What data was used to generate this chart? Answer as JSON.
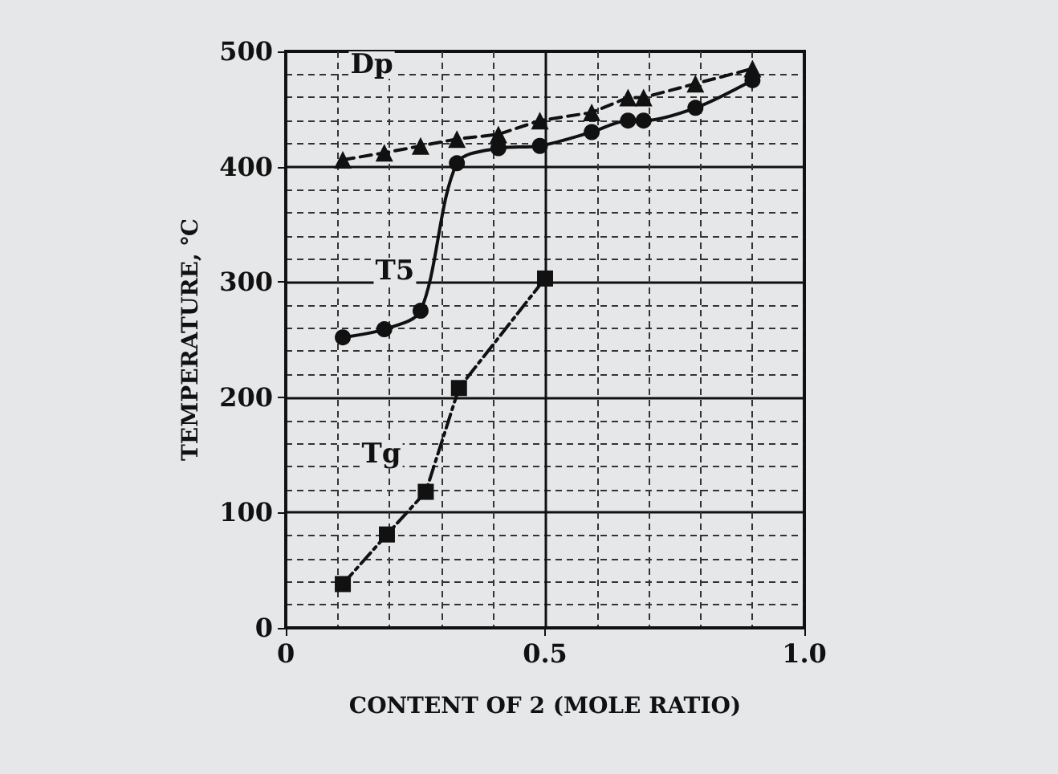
{
  "chart_data": {
    "type": "line",
    "xlabel": "CONTENT OF 2 (MOLE RATIO)",
    "ylabel": "TEMPERATURE, ℃",
    "xlim": [
      0,
      1
    ],
    "xticks": [
      0,
      0.5,
      {
        "value": 1,
        "label": "1.0"
      }
    ],
    "ylim": [
      0,
      500
    ],
    "yticks": [
      0,
      100,
      200,
      300,
      400,
      500
    ],
    "grid": true,
    "legend": false,
    "series": [
      {
        "name": "Dp",
        "color": "#111111",
        "marker": "triangle",
        "line_style": "dashed",
        "x": [
          0.11,
          0.19,
          0.26,
          0.33,
          0.41,
          0.49,
          0.59,
          0.66,
          0.69,
          0.79,
          0.9
        ],
        "values": [
          406,
          412,
          418,
          424,
          428,
          440,
          447,
          460,
          460,
          472,
          485
        ]
      },
      {
        "name": "T5",
        "color": "#111111",
        "marker": "circle",
        "line_style": "solid",
        "x": [
          0.11,
          0.19,
          0.26,
          0.33,
          0.41,
          0.49,
          0.59,
          0.66,
          0.69,
          0.79,
          0.9
        ],
        "values": [
          252,
          259,
          275,
          403,
          416,
          418,
          430,
          440,
          440,
          451,
          475
        ]
      },
      {
        "name": "Tg",
        "color": "#111111",
        "marker": "square",
        "line_style": "dashdot",
        "x": [
          0.11,
          0.195,
          0.27,
          0.334,
          0.5
        ],
        "values": [
          38,
          81,
          118,
          208,
          303
        ]
      }
    ]
  }
}
